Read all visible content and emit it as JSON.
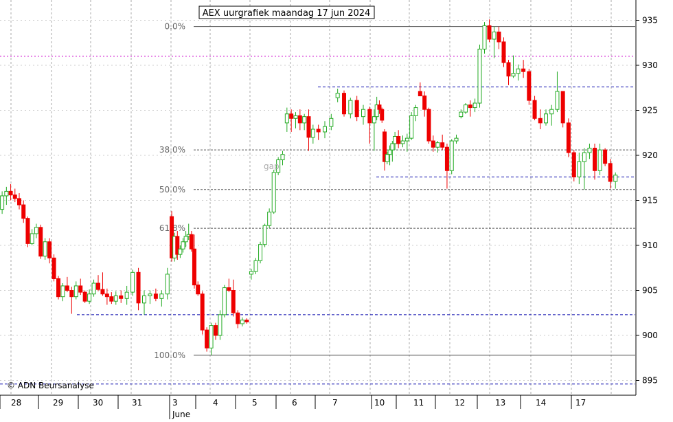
{
  "title": "AEX uurgrafiek maandag 17 jun 2024",
  "copyright": "© ADN Beursanalyse",
  "annotations": {
    "gap": "gap"
  },
  "fib_levels": [
    {
      "label": "0.0%",
      "value": 934.3
    },
    {
      "label": "38.0%",
      "value": 920.6
    },
    {
      "label": "50.0%",
      "value": 916.2
    },
    {
      "label": "61.8%",
      "value": 911.9
    },
    {
      "label": "100.0%",
      "value": 897.8
    }
  ],
  "horizontal_lines": [
    {
      "kind": "magenta-dotted",
      "value": 931.0,
      "color": "#cc00cc"
    },
    {
      "kind": "blue-dashed-support",
      "value": 902.3,
      "color": "#0000aa"
    },
    {
      "kind": "blue-dashed-resistance",
      "value": 927.6,
      "color": "#0000aa"
    },
    {
      "kind": "blue-dashed-support",
      "value": 917.6,
      "color": "#0000aa"
    },
    {
      "kind": "blue-dashed-bottom",
      "value": 894.6,
      "color": "#0000aa"
    }
  ],
  "colors": {
    "up": "#22aa22",
    "down": "#ee0000",
    "fib": "#555555",
    "grid": "#aaaaaa"
  },
  "chart_data": {
    "type": "candlestick",
    "y_axis": {
      "position": "right",
      "ticks": [
        895,
        900,
        905,
        910,
        915,
        920,
        925,
        930,
        935
      ],
      "range": [
        893.8,
        938.5
      ]
    },
    "x_axis": {
      "day_labels": [
        "28",
        "29",
        "30",
        "31",
        "3",
        "4",
        "5",
        "6",
        "7",
        "10",
        "11",
        "12",
        "13",
        "14",
        "17"
      ],
      "month_label": "June"
    },
    "candles_per_day": 9,
    "days": [
      {
        "label": "28",
        "candles": [
          [
            914,
            916,
            913.5,
            915.5
          ],
          [
            915.5,
            916.5,
            914.5,
            916
          ],
          [
            916,
            916.8,
            915,
            915.6
          ],
          [
            915.6,
            916.3,
            914.8,
            915.2
          ],
          [
            915.2,
            915.8,
            914,
            914.5
          ],
          [
            914.5,
            915,
            912.5,
            913
          ],
          [
            913,
            913.2,
            909.8,
            910.2
          ],
          [
            910.2,
            911.8,
            910,
            911.3
          ],
          [
            911.3,
            912.4,
            910.8,
            912
          ]
        ]
      },
      {
        "label": "29",
        "candles": [
          [
            912,
            912.3,
            908.5,
            908.8
          ],
          [
            908.8,
            910.8,
            908.4,
            910.4
          ],
          [
            910.4,
            910.8,
            908,
            908.6
          ],
          [
            908.6,
            909,
            906,
            906.3
          ],
          [
            906.3,
            906.6,
            904,
            904.3
          ],
          [
            904.3,
            905.8,
            903.8,
            905.5
          ],
          [
            905.5,
            906.5,
            904.8,
            905
          ],
          [
            905,
            905.4,
            902.4,
            904.3
          ],
          [
            904.3,
            906,
            904,
            905.5
          ]
        ]
      },
      {
        "label": "30",
        "candles": [
          [
            905.5,
            906.3,
            904.5,
            904.8
          ],
          [
            904.8,
            905,
            903.6,
            903.8
          ],
          [
            903.8,
            905.1,
            903.5,
            904.6
          ],
          [
            904.6,
            906.2,
            904.3,
            905.8
          ],
          [
            905.8,
            906.7,
            904.9,
            905.1
          ],
          [
            905.1,
            907,
            904.4,
            904.6
          ],
          [
            904.6,
            905.2,
            903.4,
            904.3
          ],
          [
            904.3,
            904.8,
            903.5,
            903.8
          ],
          [
            903.8,
            904.9,
            903.4,
            904.4
          ]
        ]
      },
      {
        "label": "31",
        "candles": [
          [
            904.4,
            905,
            903.6,
            904.1
          ],
          [
            904.1,
            905.5,
            903.4,
            904.8
          ],
          [
            904.8,
            907.3,
            904.4,
            907
          ],
          [
            907,
            907.5,
            902.8,
            903.6
          ],
          [
            903.6,
            905,
            902.3,
            904.4
          ],
          [
            904.4,
            905,
            903.5,
            904.6
          ],
          [
            904.6,
            905.2,
            903.8,
            904.1
          ],
          [
            904.1,
            905,
            903.2,
            904.6
          ],
          [
            904.6,
            907.5,
            904,
            906.8
          ]
        ]
      },
      {
        "label": "3",
        "candles": [
          [
            913.2,
            913.8,
            908.2,
            908.6
          ],
          [
            908.6,
            911.4,
            908.2,
            911
          ],
          [
            911,
            911.6,
            908.4,
            909
          ],
          [
            909,
            910,
            908.6,
            909.6
          ],
          [
            909.6,
            910.8,
            909.2,
            910.4
          ],
          [
            910.4,
            911.6,
            909.8,
            911
          ],
          [
            911,
            912.4,
            910.6,
            911.2
          ],
          [
            911.2,
            911.6,
            909.3,
            909.6
          ],
          [
            909.6,
            911.2,
            905.2,
            905.6
          ]
        ]
      },
      {
        "label": "4",
        "candles": [
          [
            905.6,
            906,
            904.4,
            904.6
          ],
          [
            904.6,
            904.9,
            900.1,
            900.6
          ],
          [
            900.6,
            900.9,
            898.2,
            898.6
          ],
          [
            898.6,
            901.4,
            897.8,
            901.1
          ],
          [
            901.1,
            901.4,
            899.5,
            900
          ],
          [
            900,
            902.8,
            899.5,
            902.3
          ],
          [
            902.3,
            905.6,
            902,
            905.3
          ],
          [
            905.3,
            906.3,
            904.8,
            905
          ],
          [
            905,
            906.2,
            902.1,
            902.5
          ]
        ]
      },
      {
        "label": "5",
        "candles": [
          [
            902.5,
            902.8,
            900.8,
            901.3
          ],
          [
            901.3,
            902,
            901,
            901.7
          ],
          [
            901.7,
            901.9,
            901.3,
            901.5
          ],
          [
            906.8,
            907.4,
            906.2,
            907.1
          ],
          [
            907.1,
            908.6,
            906.8,
            908.3
          ],
          [
            908.3,
            910.4,
            908,
            910.1
          ],
          [
            910.1,
            912.4,
            909.8,
            912.2
          ],
          [
            912.2,
            914.1,
            911.9,
            913.7
          ],
          [
            913.7,
            918.4,
            913.5,
            918.1
          ]
        ]
      },
      {
        "label": "6",
        "candles": [
          [
            918.1,
            919.8,
            917.8,
            919.5
          ],
          [
            919.5,
            920.5,
            918.9,
            920.1
          ],
          [
            923.6,
            925.3,
            922.6,
            924.6
          ],
          [
            924.6,
            925.1,
            922.6,
            924.1
          ],
          [
            924.1,
            924.8,
            923,
            924.4
          ],
          [
            924.4,
            925.1,
            922.8,
            923.6
          ],
          [
            923.6,
            924.6,
            922.8,
            924.3
          ],
          [
            924.3,
            925.1,
            920.5,
            922
          ],
          [
            922,
            923.4,
            921.3,
            922.9
          ]
        ]
      },
      {
        "label": "7",
        "candles": [
          [
            922.9,
            923.4,
            921.7,
            922.6
          ],
          [
            922.6,
            923.8,
            921.9,
            923.2
          ],
          [
            923.2,
            924.6,
            922.8,
            924.1
          ],
          [
            926.4,
            927.4,
            925.9,
            926.9
          ],
          [
            926.9,
            927.2,
            924.3,
            924.6
          ],
          [
            924.6,
            926.4,
            924.1,
            926.1
          ],
          [
            926.1,
            926.6,
            923.8,
            924.3
          ],
          [
            924.3,
            925.6,
            923.4,
            925.1
          ],
          [
            925.1,
            925.4,
            921.3,
            923.6
          ]
        ]
      },
      {
        "label": "10",
        "candles": [
          [
            923.6,
            925.1,
            920.5,
            924.3
          ],
          [
            924.3,
            926.5,
            923.9,
            925.6
          ],
          [
            925.6,
            926.1,
            924.6,
            925.1
          ],
          [
            925.1,
            925.3,
            923.6,
            923.9
          ],
          [
            922.6,
            922.9,
            918.3,
            919.3
          ],
          [
            919.3,
            920.4,
            919,
            920.1
          ],
          [
            920.1,
            921.1,
            918.9,
            920.6
          ],
          [
            920.6,
            921.6,
            919.3,
            921.3
          ],
          [
            921.3,
            922.6,
            920.6,
            922.1
          ]
        ]
      },
      {
        "label": "11",
        "candles": [
          [
            922.1,
            922.8,
            920.8,
            921.3
          ],
          [
            921.3,
            922.2,
            920.9,
            921.6
          ],
          [
            921.6,
            922.4,
            920.4,
            921.9
          ],
          [
            921.9,
            924.8,
            921.7,
            924.4
          ],
          [
            924.4,
            925.6,
            923.8,
            925.3
          ],
          [
            927.1,
            928.1,
            926.6,
            926.6
          ],
          [
            926.6,
            927.1,
            924.3,
            925.1
          ],
          [
            925.1,
            925.3,
            921.3,
            921.6
          ],
          [
            921.6,
            922.2,
            920.4,
            920.9
          ]
        ]
      },
      {
        "label": "12",
        "candles": [
          [
            920.9,
            921.6,
            920.3,
            921.4
          ],
          [
            921.4,
            922.3,
            920.6,
            920.9
          ],
          [
            920.9,
            921.3,
            916.3,
            918.3
          ],
          [
            918.3,
            921.8,
            917.9,
            921.6
          ],
          [
            921.6,
            922.3,
            921.3,
            921.9
          ],
          [
            924.3,
            925.1,
            924.1,
            924.8
          ],
          [
            924.8,
            925.8,
            924.6,
            925.6
          ],
          [
            925.6,
            926.1,
            924.3,
            925.3
          ],
          [
            925.3,
            926.3,
            924.8,
            925.8
          ]
        ]
      },
      {
        "label": "13",
        "candles": [
          [
            925.8,
            932.3,
            925.3,
            931.8
          ],
          [
            931.8,
            934.8,
            931.3,
            934.4
          ],
          [
            934.4,
            935.1,
            932.6,
            932.9
          ],
          [
            932.9,
            934.3,
            930.8,
            933.7
          ],
          [
            933.7,
            934.3,
            931.8,
            932.6
          ],
          [
            932.6,
            933.1,
            929.8,
            930.3
          ],
          [
            930.3,
            930.6,
            927.8,
            928.8
          ],
          [
            928.8,
            931.1,
            928.6,
            929.1
          ],
          [
            929.1,
            930.1,
            928.3,
            929.6
          ]
        ]
      },
      {
        "label": "14",
        "candles": [
          [
            929.6,
            930.6,
            928.6,
            929.3
          ],
          [
            929.3,
            929.6,
            925.6,
            926.1
          ],
          [
            926.1,
            926.6,
            923.9,
            924.1
          ],
          [
            924.1,
            925.1,
            922.9,
            923.6
          ],
          [
            923.6,
            925.1,
            923.3,
            924.6
          ],
          [
            924.6,
            925.6,
            923.3,
            925.1
          ],
          [
            925.1,
            929.3,
            924.8,
            927.1
          ],
          [
            927.1,
            927.1,
            923.1,
            923.6
          ],
          [
            923.6,
            924.1,
            919.8,
            920.3
          ]
        ]
      },
      {
        "label": "17",
        "candles": [
          [
            920.3,
            920.6,
            917.1,
            917.6
          ],
          [
            917.6,
            920.3,
            916.8,
            919.3
          ],
          [
            919.3,
            920.8,
            916.2,
            920.3
          ],
          [
            920.3,
            921.3,
            919.6,
            920.8
          ],
          [
            920.8,
            921.3,
            917.3,
            918.3
          ],
          [
            918.3,
            921.3,
            917.8,
            920.6
          ],
          [
            920.6,
            920.8,
            918.8,
            919.1
          ],
          [
            919.1,
            919.6,
            916.3,
            917.1
          ],
          [
            917.1,
            918.1,
            916.3,
            917.8
          ]
        ]
      }
    ]
  }
}
